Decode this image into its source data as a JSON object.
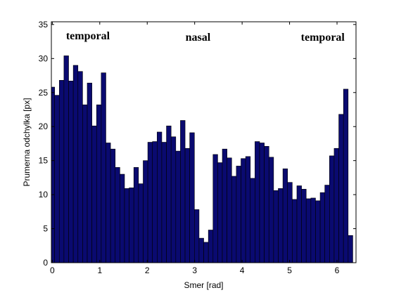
{
  "chart_data": {
    "type": "bar",
    "title": "",
    "xlabel": "Smer [rad]",
    "ylabel": "Prumerna odchylka [px]",
    "xlim": [
      -0.02,
      6.4
    ],
    "ylim": [
      0,
      35.4
    ],
    "xticks": [
      0,
      1,
      2,
      3,
      4,
      5,
      6
    ],
    "yticks": [
      0,
      5,
      10,
      15,
      20,
      25,
      30,
      35
    ],
    "grid": false,
    "bar_color": "#0a0a70",
    "bar_edge_color": "#000000",
    "bar_width": 0.0982,
    "annotations": [
      {
        "text": "temporal",
        "x": 0.75,
        "y": 32.8
      },
      {
        "text": "nasal",
        "x": 3.07,
        "y": 32.6
      },
      {
        "text": "temporal",
        "x": 5.7,
        "y": 32.6
      }
    ],
    "x": [
      0.0,
      0.0982,
      0.1963,
      0.2945,
      0.3927,
      0.4909,
      0.589,
      0.6872,
      0.7854,
      0.8836,
      0.9817,
      1.0799,
      1.1781,
      1.2763,
      1.3744,
      1.4726,
      1.5708,
      1.669,
      1.7671,
      1.8653,
      1.9635,
      2.0617,
      2.1598,
      2.258,
      2.3562,
      2.4544,
      2.5525,
      2.6507,
      2.7489,
      2.8471,
      2.9452,
      3.0434,
      3.1416,
      3.2398,
      3.3379,
      3.4361,
      3.5343,
      3.6325,
      3.7306,
      3.8288,
      3.927,
      4.0252,
      4.1233,
      4.2215,
      4.3197,
      4.4179,
      4.516,
      4.6142,
      4.7124,
      4.8106,
      4.9087,
      5.0069,
      5.1051,
      5.2033,
      5.3014,
      5.3996,
      5.4978,
      5.596,
      5.6941,
      5.7923,
      5.8905,
      5.9887,
      6.0868,
      6.185,
      6.2832
    ],
    "values": [
      25.8,
      24.6,
      26.8,
      30.4,
      26.7,
      29.0,
      28.1,
      23.2,
      26.4,
      20.1,
      23.2,
      27.9,
      17.6,
      16.7,
      14.0,
      13.0,
      10.9,
      11.0,
      14.0,
      11.6,
      15.0,
      17.7,
      17.8,
      19.2,
      17.7,
      20.1,
      18.5,
      16.4,
      20.9,
      16.8,
      19.1,
      7.8,
      3.6,
      3.0,
      4.8,
      15.9,
      14.7,
      16.7,
      15.4,
      12.7,
      14.2,
      15.3,
      15.6,
      12.4,
      17.8,
      17.6,
      17.1,
      15.5,
      10.6,
      10.9,
      13.8,
      11.8,
      9.3,
      11.3,
      10.8,
      9.4,
      9.5,
      9.1,
      10.3,
      11.4,
      15.7,
      16.8,
      21.8,
      25.5,
      4.0
    ]
  }
}
